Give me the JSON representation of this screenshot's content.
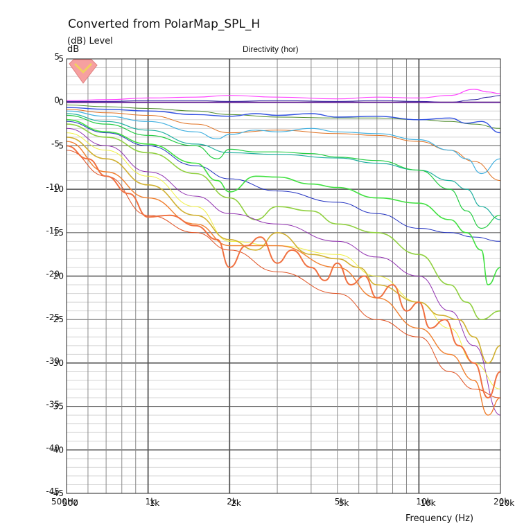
{
  "chart_data": {
    "type": "line",
    "title": "Converted from PolarMap_SPL_H",
    "ylabel": "(dB)  Level",
    "ylabel_unit": "dB",
    "subtitle": "Directivity (hor)",
    "xlabel": "Frequency  (Hz)",
    "x_scale": "log",
    "xlim": [
      500,
      20000
    ],
    "ylim": [
      -45,
      5
    ],
    "grid": true,
    "legend": "none",
    "x_tick_labels": [
      {
        "value": 500,
        "labels": [
          "500Hz",
          "500"
        ]
      },
      {
        "value": 1000,
        "labels": [
          "1k",
          "1k"
        ]
      },
      {
        "value": 2000,
        "labels": [
          "2k",
          "2k"
        ]
      },
      {
        "value": 5000,
        "labels": [
          "5k",
          "5k"
        ]
      },
      {
        "value": 10000,
        "labels": [
          "10k",
          "10k"
        ]
      },
      {
        "value": 20000,
        "labels": [
          "20k",
          "20k"
        ]
      }
    ],
    "y_tick_labels": [
      {
        "value": 5,
        "labels": [
          "5",
          "5"
        ]
      },
      {
        "value": 0,
        "labels": [
          "0",
          "0"
        ]
      },
      {
        "value": -5,
        "labels": [
          "-5",
          "-5"
        ]
      },
      {
        "value": -10,
        "labels": [
          "-10",
          "-10"
        ]
      },
      {
        "value": -15,
        "labels": [
          "-15",
          "-15"
        ]
      },
      {
        "value": -20,
        "labels": [
          "-20",
          "-20"
        ]
      },
      {
        "value": -25,
        "labels": [
          "-25",
          "-25"
        ]
      },
      {
        "value": -30,
        "labels": [
          "-30",
          "-30"
        ]
      },
      {
        "value": -35,
        "labels": [
          "-35",
          "-35"
        ]
      },
      {
        "value": -40,
        "labels": [
          "-40",
          "-40"
        ]
      },
      {
        "value": -45,
        "labels": [
          "-45",
          "-45"
        ]
      }
    ],
    "series": [
      {
        "color": "#ff40ff",
        "width": 1.2,
        "x": [
          500,
          700,
          1000,
          1500,
          2000,
          3000,
          5000,
          7000,
          10000,
          13000,
          16000,
          18000,
          20000
        ],
        "y": [
          0.2,
          0.3,
          0.5,
          0.6,
          0.8,
          0.6,
          0.4,
          0.6,
          0.5,
          0.8,
          1.5,
          1.2,
          1.0
        ]
      },
      {
        "color": "#2a1aa0",
        "width": 1.0,
        "x": [
          500,
          700,
          1000,
          1500,
          2000,
          3000,
          5000,
          7000,
          10000,
          13000,
          16000,
          18000,
          20000
        ],
        "y": [
          0.1,
          0.1,
          0.2,
          0.2,
          0.1,
          0.2,
          0.1,
          0.2,
          0.1,
          0.0,
          0.3,
          0.6,
          0.8
        ]
      },
      {
        "color": "#7030a0",
        "width": 2.0,
        "x": [
          500,
          1000,
          2000,
          5000,
          10000,
          20000
        ],
        "y": [
          0,
          0,
          0,
          0,
          0,
          0
        ]
      },
      {
        "color": "#4d8b2a",
        "width": 1.0,
        "x": [
          500,
          700,
          1000,
          1500,
          2000,
          3000,
          5000,
          7000,
          10000,
          13000,
          16000,
          20000
        ],
        "y": [
          -0.3,
          -0.5,
          -0.7,
          -1.0,
          -1.4,
          -1.7,
          -1.8,
          -1.8,
          -2.0,
          -2.2,
          -2.5,
          -3.0
        ]
      },
      {
        "color": "#3050e0",
        "width": 1.4,
        "x": [
          500,
          700,
          1000,
          1500,
          2000,
          2500,
          3000,
          4000,
          5000,
          7000,
          10000,
          13000,
          15000,
          17000,
          20000
        ],
        "y": [
          -0.6,
          -0.8,
          -1.0,
          -1.4,
          -1.6,
          -1.3,
          -1.5,
          -1.3,
          -1.7,
          -1.6,
          -2.0,
          -1.8,
          -2.4,
          -2.2,
          -3.5
        ]
      },
      {
        "color": "#e07020",
        "width": 1.0,
        "x": [
          500,
          700,
          1000,
          1500,
          2000,
          3000,
          5000,
          7000,
          10000,
          13000,
          16000,
          20000
        ],
        "y": [
          -0.8,
          -1.2,
          -1.5,
          -2.5,
          -3.5,
          -3.2,
          -3.6,
          -3.8,
          -4.5,
          -5.5,
          -6.8,
          -9.0
        ]
      },
      {
        "color": "#40b0e0",
        "width": 1.2,
        "x": [
          500,
          700,
          1000,
          1500,
          1800,
          2000,
          2500,
          3000,
          4000,
          5000,
          7000,
          10000,
          13000,
          15000,
          17000,
          20000
        ],
        "y": [
          -1.0,
          -1.6,
          -2.2,
          -3.4,
          -4.2,
          -3.7,
          -3.2,
          -3.4,
          -3.0,
          -3.4,
          -3.6,
          -4.3,
          -5.5,
          -6.5,
          -8.2,
          -6.5
        ]
      },
      {
        "color": "#20b0a0",
        "width": 1.2,
        "x": [
          500,
          700,
          1000,
          1500,
          2000,
          3000,
          5000,
          7000,
          10000,
          13000,
          15000,
          17000,
          20000
        ],
        "y": [
          -1.3,
          -2.2,
          -3.2,
          -4.8,
          -5.8,
          -6.0,
          -6.4,
          -7.0,
          -7.8,
          -9.0,
          -10.0,
          -12.0,
          -13.5
        ]
      },
      {
        "color": "#22cc40",
        "width": 1.2,
        "x": [
          500,
          700,
          1000,
          1500,
          1800,
          2000,
          2500,
          3000,
          4000,
          5000,
          7000,
          10000,
          13000,
          15000,
          17000,
          20000
        ],
        "y": [
          -1.5,
          -2.5,
          -3.8,
          -5.0,
          -6.5,
          -5.4,
          -5.7,
          -5.7,
          -5.9,
          -6.3,
          -6.7,
          -7.8,
          -10.0,
          -12.5,
          -14.5,
          -13.0
        ]
      },
      {
        "color": "#2030c0",
        "width": 1.0,
        "x": [
          500,
          700,
          1000,
          1500,
          2000,
          3000,
          5000,
          7000,
          10000,
          13000,
          16000,
          20000
        ],
        "y": [
          -2.2,
          -3.5,
          -5.0,
          -7.3,
          -8.8,
          -10.2,
          -11.5,
          -12.8,
          -14.5,
          -15.0,
          -15.5,
          -16.0
        ]
      },
      {
        "color": "#40e040",
        "width": 1.6,
        "x": [
          500,
          700,
          1000,
          1500,
          1800,
          2000,
          2500,
          3000,
          4000,
          5000,
          7000,
          10000,
          13000,
          15000,
          17000,
          18000,
          20000
        ],
        "y": [
          -2.0,
          -3.4,
          -4.8,
          -7.0,
          -9.0,
          -10.3,
          -8.5,
          -8.6,
          -9.4,
          -9.8,
          -11.0,
          -11.6,
          -13.5,
          -15.0,
          -17.0,
          -21.0,
          -19.0
        ]
      },
      {
        "color": "#90d040",
        "width": 1.6,
        "x": [
          500,
          700,
          1000,
          1500,
          2000,
          2500,
          3000,
          4000,
          5000,
          7000,
          10000,
          13000,
          15000,
          17000,
          20000
        ],
        "y": [
          -2.5,
          -4.0,
          -5.8,
          -8.2,
          -11.0,
          -13.5,
          -12.0,
          -12.5,
          -14.0,
          -15.0,
          -17.5,
          -21.0,
          -23.0,
          -25.0,
          -24.0
        ]
      },
      {
        "color": "#9030b0",
        "width": 1.0,
        "x": [
          500,
          700,
          1000,
          1500,
          2000,
          3000,
          5000,
          7000,
          10000,
          13000,
          16000,
          20000
        ],
        "y": [
          -3.0,
          -5.0,
          -8.0,
          -10.8,
          -12.8,
          -14.0,
          -16.0,
          -17.8,
          -20.0,
          -24.0,
          -28.0,
          -36.0
        ]
      },
      {
        "color": "#f0f040",
        "width": 1.0,
        "x": [
          500,
          700,
          1000,
          1500,
          2000,
          3000,
          5000,
          7000,
          10000,
          13000,
          16000,
          20000
        ],
        "y": [
          -3.5,
          -5.5,
          -8.5,
          -12.0,
          -16.0,
          -16.5,
          -17.5,
          -20.0,
          -23.0,
          -26.0,
          -30.0,
          -33.0
        ]
      },
      {
        "color": "#d0b030",
        "width": 1.6,
        "x": [
          500,
          700,
          1000,
          1500,
          2000,
          2500,
          3000,
          4000,
          5000,
          6000,
          7000,
          10000,
          12000,
          14000,
          16000,
          18000,
          20000
        ],
        "y": [
          -4.0,
          -6.5,
          -9.5,
          -13.0,
          -15.8,
          -17.0,
          -15.0,
          -17.5,
          -18.0,
          -19.0,
          -21.0,
          -23.0,
          -24.5,
          -25.0,
          -27.0,
          -30.0,
          -28.0
        ]
      },
      {
        "color": "#f08030",
        "width": 1.4,
        "x": [
          500,
          700,
          1000,
          1500,
          2000,
          3000,
          5000,
          7000,
          10000,
          13000,
          16000,
          18000,
          20000
        ],
        "y": [
          -4.5,
          -8.0,
          -11.0,
          -14.0,
          -16.5,
          -16.5,
          -19.0,
          -22.5,
          -26.0,
          -29.0,
          -32.0,
          -36.0,
          -34.0
        ]
      },
      {
        "color": "#e05020",
        "width": 1.0,
        "x": [
          500,
          700,
          1000,
          1500,
          2000,
          3000,
          5000,
          7000,
          10000,
          13000,
          16000,
          20000
        ],
        "y": [
          -5.5,
          -8.5,
          -13.0,
          -15.0,
          -17.0,
          -19.5,
          -22.0,
          -25.0,
          -27.0,
          -31.0,
          -33.0,
          -34.0
        ]
      },
      {
        "color": "#f07040",
        "width": 2.0,
        "x": [
          500,
          600,
          700,
          850,
          1000,
          1200,
          1500,
          1800,
          2000,
          2300,
          2600,
          3000,
          3400,
          4000,
          4500,
          5000,
          5600,
          6300,
          7000,
          8000,
          9000,
          10000,
          11000,
          12500,
          14000,
          16000,
          18000,
          20000
        ],
        "y": [
          -5.0,
          -6.5,
          -8.5,
          -10.5,
          -13.2,
          -13.0,
          -14.2,
          -15.8,
          -19.0,
          -16.5,
          -15.5,
          -18.5,
          -17.0,
          -19.0,
          -20.5,
          -18.5,
          -21.0,
          -20.0,
          -22.5,
          -21.0,
          -24.0,
          -23.0,
          -26.0,
          -25.0,
          -28.0,
          -30.0,
          -34.0,
          -31.0
        ]
      }
    ]
  }
}
